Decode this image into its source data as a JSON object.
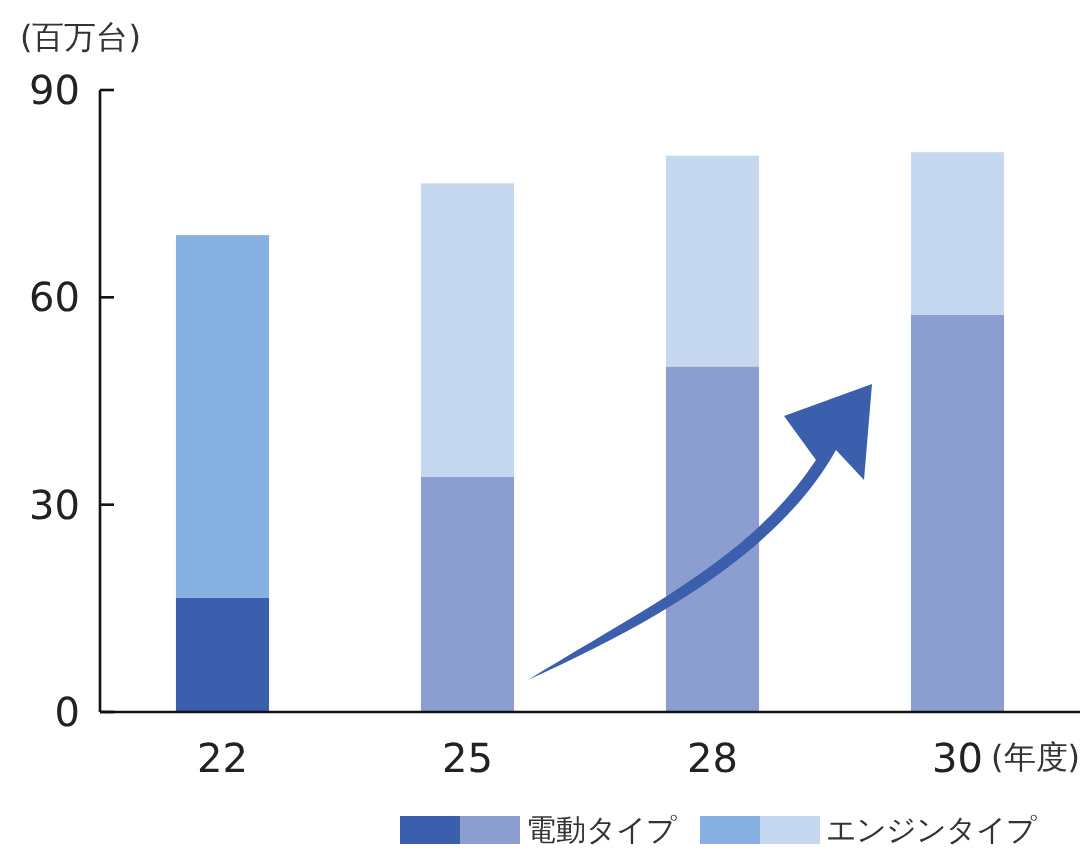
{
  "chart_data": {
    "type": "bar",
    "stacked": true,
    "ylabel": "(百万台)",
    "xlabel": "(年度)",
    "categories": [
      "22",
      "25",
      "28",
      "30"
    ],
    "ylim": [
      0,
      90
    ],
    "yticks": [
      0,
      30,
      60,
      90
    ],
    "legend": "bottom right",
    "grid": false,
    "series": [
      {
        "name": "電動タイプ",
        "colors": [
          "#3b5fad",
          "#8b9ecf",
          "#8b9ecf",
          "#8b9ecf"
        ],
        "values": [
          16.5,
          34,
          50,
          57.5
        ]
      },
      {
        "name": "エンジンタイプ",
        "colors": [
          "#86b1e0",
          "#c6d8f0",
          "#c6d8f0",
          "#c6d8f0"
        ],
        "values": [
          52.5,
          42.5,
          30.5,
          23.5
        ]
      }
    ]
  }
}
